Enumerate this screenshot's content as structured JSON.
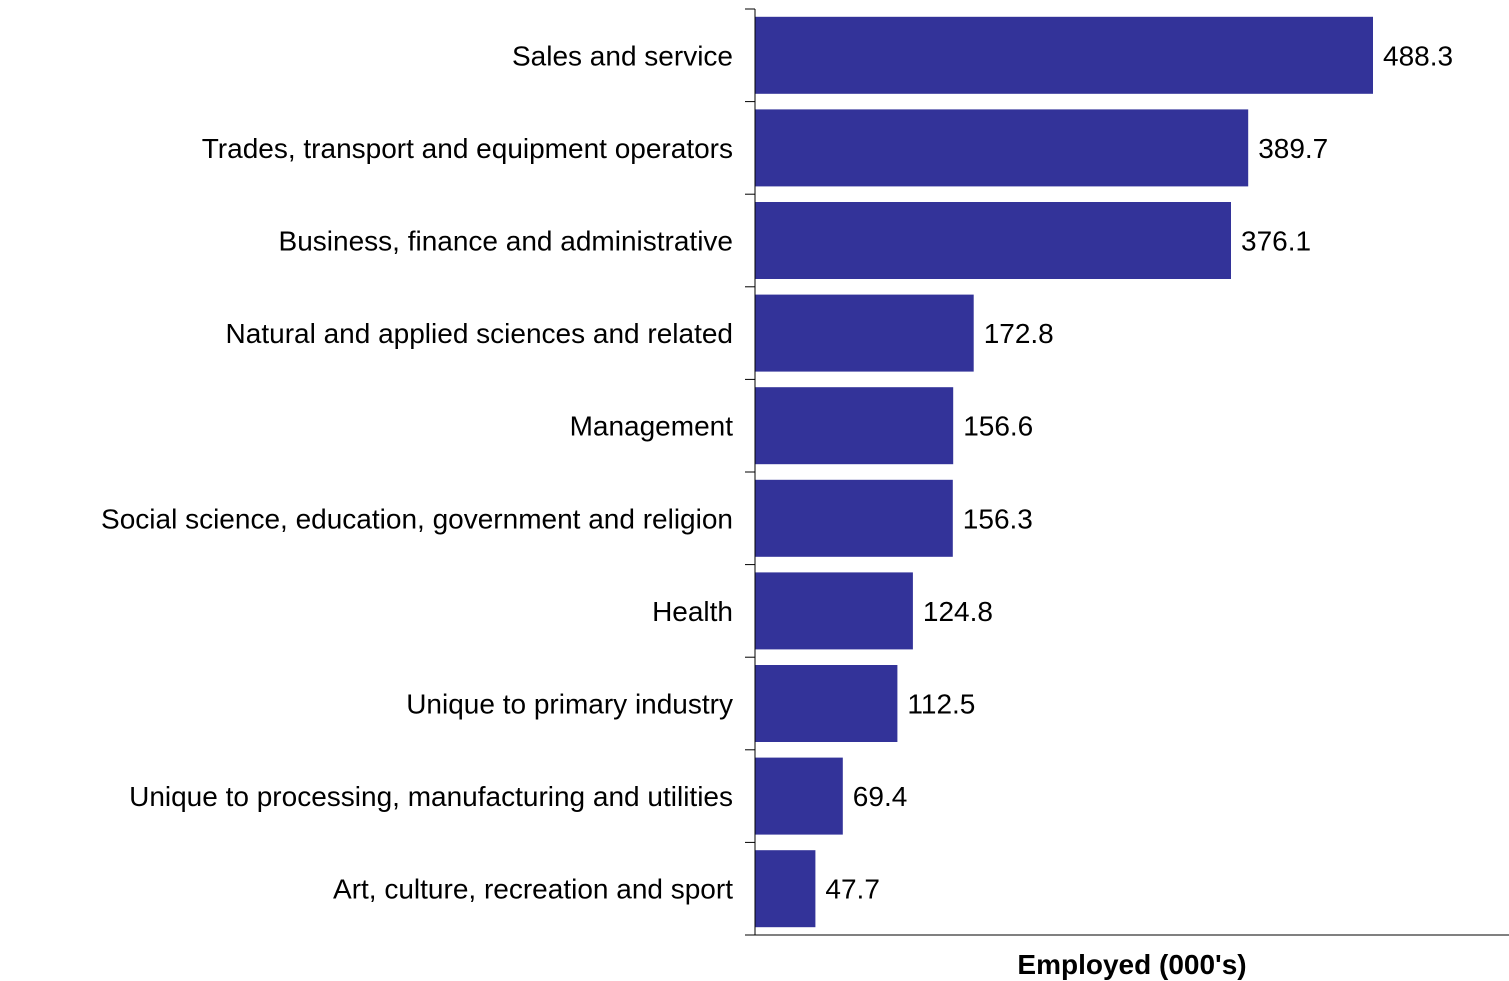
{
  "chart_data": {
    "type": "bar",
    "orientation": "horizontal",
    "categories": [
      "Sales and service",
      "Trades, transport and equipment operators",
      "Business, finance and administrative",
      "Natural and applied sciences and related",
      "Management",
      "Social science, education, government and religion",
      "Health",
      "Unique to primary industry",
      "Unique to processing, manufacturing and utilities",
      "Art, culture, recreation and sport"
    ],
    "values": [
      488.3,
      389.7,
      376.1,
      172.8,
      156.6,
      156.3,
      124.8,
      112.5,
      69.4,
      47.7
    ],
    "value_labels": [
      "488.3",
      "389.7",
      "376.1",
      "172.8",
      "156.6",
      "156.3",
      "124.8",
      "112.5",
      "69.4",
      "47.7"
    ],
    "xlabel": "Employed (000's)",
    "ylabel": "",
    "title": "",
    "xlim": [
      0,
      600
    ],
    "grid": false,
    "legend": "none",
    "bar_color": "#333399"
  }
}
